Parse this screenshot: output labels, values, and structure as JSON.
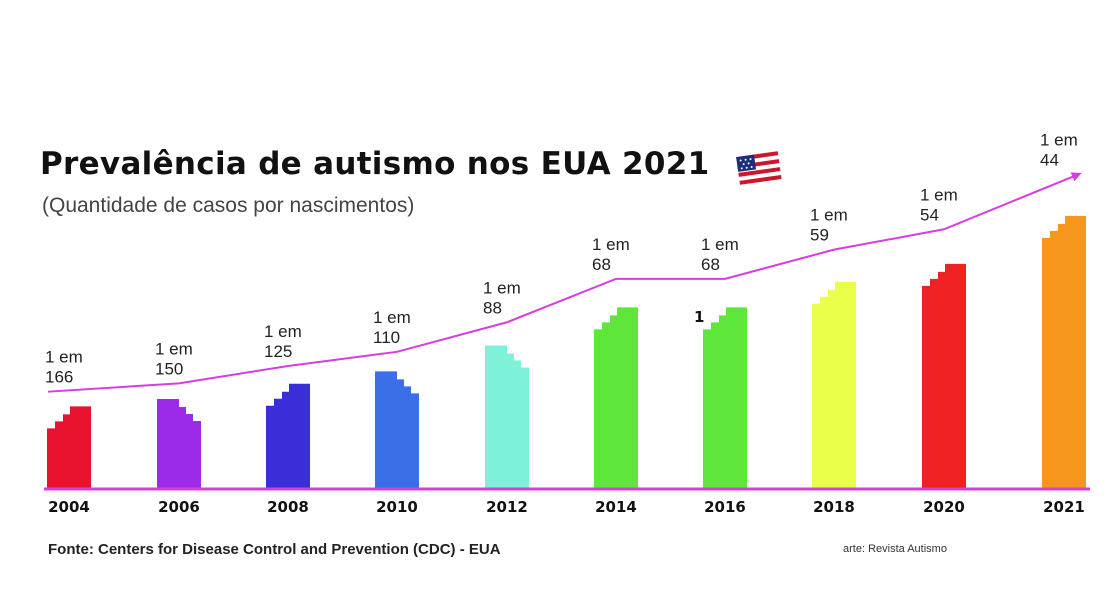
{
  "title": "Prevalência de autismo nos EUA 2021",
  "subtitle": "(Quantidade de casos por nascimentos)",
  "footer": {
    "source": "Fonte: Centers for Disease Control and Prevention (CDC) - EUA",
    "credit": "arte: Revista Autismo"
  },
  "colors": {
    "line": "#d63ee0",
    "axis": "#d63ee0",
    "bars": [
      "#e8122e",
      "#9b2be8",
      "#3a2fd6",
      "#3a6fe8",
      "#7df2d9",
      "#5ee63a",
      "#5ee63a",
      "#eaff4a",
      "#ee2222",
      "#f7961c"
    ]
  },
  "icons": {
    "flag": "usa-flag-icon"
  },
  "chart_data": {
    "type": "bar",
    "categories": [
      "2004",
      "2006",
      "2008",
      "2010",
      "2012",
      "2014",
      "2016",
      "2018",
      "2020",
      "2021"
    ],
    "values": [
      166,
      150,
      125,
      110,
      88,
      68,
      68,
      59,
      54,
      44
    ],
    "labels": [
      [
        "1 em",
        "166"
      ],
      [
        "1 em",
        "150"
      ],
      [
        "1 em",
        "125"
      ],
      [
        "1 em",
        "110"
      ],
      [
        "1 em",
        "88"
      ],
      [
        "1 em",
        "68"
      ],
      [
        "1 em",
        "68"
      ],
      [
        "1 em",
        "59"
      ],
      [
        "1 em",
        "54"
      ],
      [
        "1 em",
        "44"
      ]
    ],
    "stray_mark": "1",
    "title": "Prevalência de autismo nos EUA 2021",
    "subtitle": "(Quantidade de casos por nascimentos)",
    "legend": "none",
    "grid": false,
    "trend_line": true
  }
}
